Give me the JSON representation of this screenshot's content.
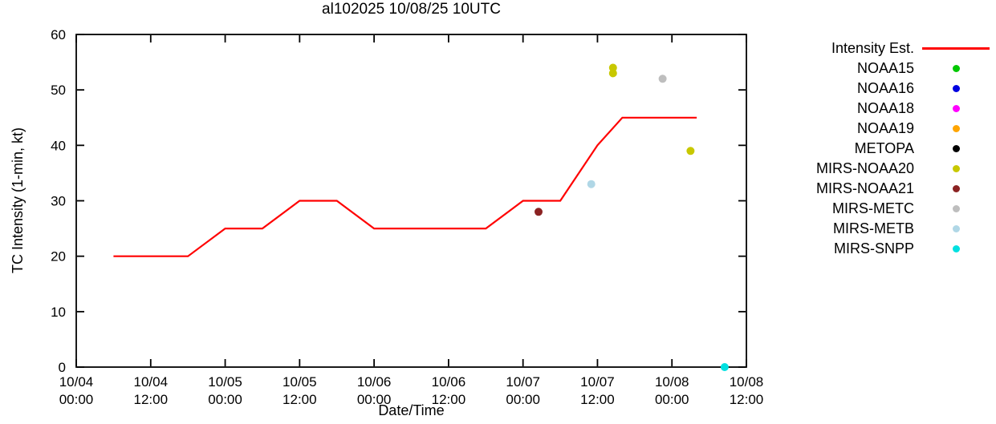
{
  "chart_data": {
    "type": "line",
    "title": "al102025 10/08/25 10UTC",
    "xlabel": "Date/Time",
    "ylabel": "TC Intensity (1-min, kt)",
    "ylim": [
      0,
      60
    ],
    "yticks": [
      0,
      10,
      20,
      30,
      40,
      50,
      60
    ],
    "x_range_hours": [
      0,
      108
    ],
    "xticks": [
      {
        "hours": 0,
        "date": "10/04",
        "time": "00:00"
      },
      {
        "hours": 12,
        "date": "10/04",
        "time": "12:00"
      },
      {
        "hours": 24,
        "date": "10/05",
        "time": "00:00"
      },
      {
        "hours": 36,
        "date": "10/05",
        "time": "12:00"
      },
      {
        "hours": 48,
        "date": "10/06",
        "time": "00:00"
      },
      {
        "hours": 60,
        "date": "10/06",
        "time": "12:00"
      },
      {
        "hours": 72,
        "date": "10/07",
        "time": "00:00"
      },
      {
        "hours": 84,
        "date": "10/07",
        "time": "12:00"
      },
      {
        "hours": 96,
        "date": "10/08",
        "time": "00:00"
      },
      {
        "hours": 108,
        "date": "10/08",
        "time": "12:00"
      }
    ],
    "line_series": {
      "name": "Intensity Est.",
      "color": "#ff0000",
      "points_hours_kt": [
        [
          6,
          20
        ],
        [
          18,
          20
        ],
        [
          24,
          25
        ],
        [
          30,
          25
        ],
        [
          36,
          30
        ],
        [
          42,
          30
        ],
        [
          48,
          25
        ],
        [
          66,
          25
        ],
        [
          72,
          30
        ],
        [
          78,
          30
        ],
        [
          84,
          40
        ],
        [
          88,
          45
        ],
        [
          100,
          45
        ]
      ]
    },
    "scatter_series": [
      {
        "name": "NOAA15",
        "color": "#00c800",
        "points_hours_kt": []
      },
      {
        "name": "NOAA16",
        "color": "#0000e0",
        "points_hours_kt": []
      },
      {
        "name": "NOAA18",
        "color": "#ff00ff",
        "points_hours_kt": []
      },
      {
        "name": "NOAA19",
        "color": "#ffa500",
        "points_hours_kt": []
      },
      {
        "name": "METOPA",
        "color": "#000000",
        "points_hours_kt": []
      },
      {
        "name": "MIRS-NOAA20",
        "color": "#c8c800",
        "points_hours_kt": [
          [
            86.5,
            53
          ],
          [
            86.5,
            54
          ],
          [
            99,
            39
          ]
        ]
      },
      {
        "name": "MIRS-NOAA21",
        "color": "#8b2222",
        "points_hours_kt": [
          [
            74.5,
            28
          ]
        ]
      },
      {
        "name": "MIRS-METC",
        "color": "#bebebe",
        "points_hours_kt": [
          [
            94.5,
            52
          ]
        ]
      },
      {
        "name": "MIRS-METB",
        "color": "#b0d7e6",
        "points_hours_kt": [
          [
            83,
            33
          ]
        ]
      },
      {
        "name": "MIRS-SNPP",
        "color": "#00e0e0",
        "points_hours_kt": [
          [
            104.5,
            0
          ]
        ]
      }
    ],
    "legend_position": "right"
  },
  "legend": {
    "items": [
      {
        "label": "Intensity Est.",
        "color": "#ff0000",
        "marker": "line"
      },
      {
        "label": "NOAA15",
        "color": "#00c800",
        "marker": "dot"
      },
      {
        "label": "NOAA16",
        "color": "#0000e0",
        "marker": "dot"
      },
      {
        "label": "NOAA18",
        "color": "#ff00ff",
        "marker": "dot"
      },
      {
        "label": "NOAA19",
        "color": "#ffa500",
        "marker": "dot"
      },
      {
        "label": "METOPA",
        "color": "#000000",
        "marker": "dot"
      },
      {
        "label": "MIRS-NOAA20",
        "color": "#c8c800",
        "marker": "dot"
      },
      {
        "label": "MIRS-NOAA21",
        "color": "#8b2222",
        "marker": "dot"
      },
      {
        "label": "MIRS-METC",
        "color": "#bebebe",
        "marker": "dot"
      },
      {
        "label": "MIRS-METB",
        "color": "#b0d7e6",
        "marker": "dot"
      },
      {
        "label": "MIRS-SNPP",
        "color": "#00e0e0",
        "marker": "dot"
      }
    ]
  }
}
